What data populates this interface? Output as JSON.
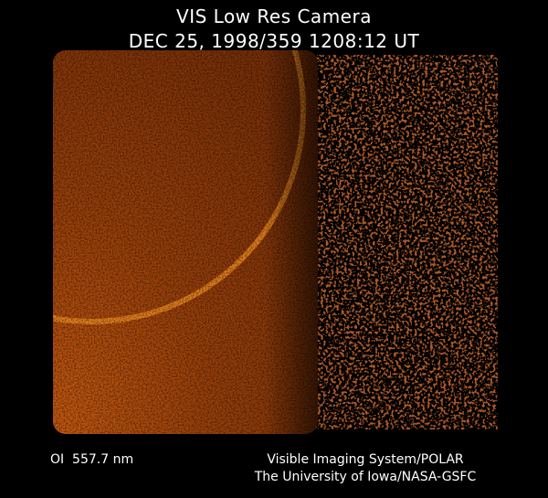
{
  "header": {
    "title": "VIS Low Res Camera",
    "timestamp": "DEC 25, 1998/359 1208:12 UT"
  },
  "footer": {
    "wavelength": "OI  557.7 nm",
    "credit_line1": "Visible Imaging System/POLAR",
    "credit_line2": "The University of Iowa/NASA-GSFC"
  },
  "colors": {
    "background": "#000000",
    "glow": "#b04a08",
    "arc": "#f08a20",
    "noise": "#5a1004"
  }
}
